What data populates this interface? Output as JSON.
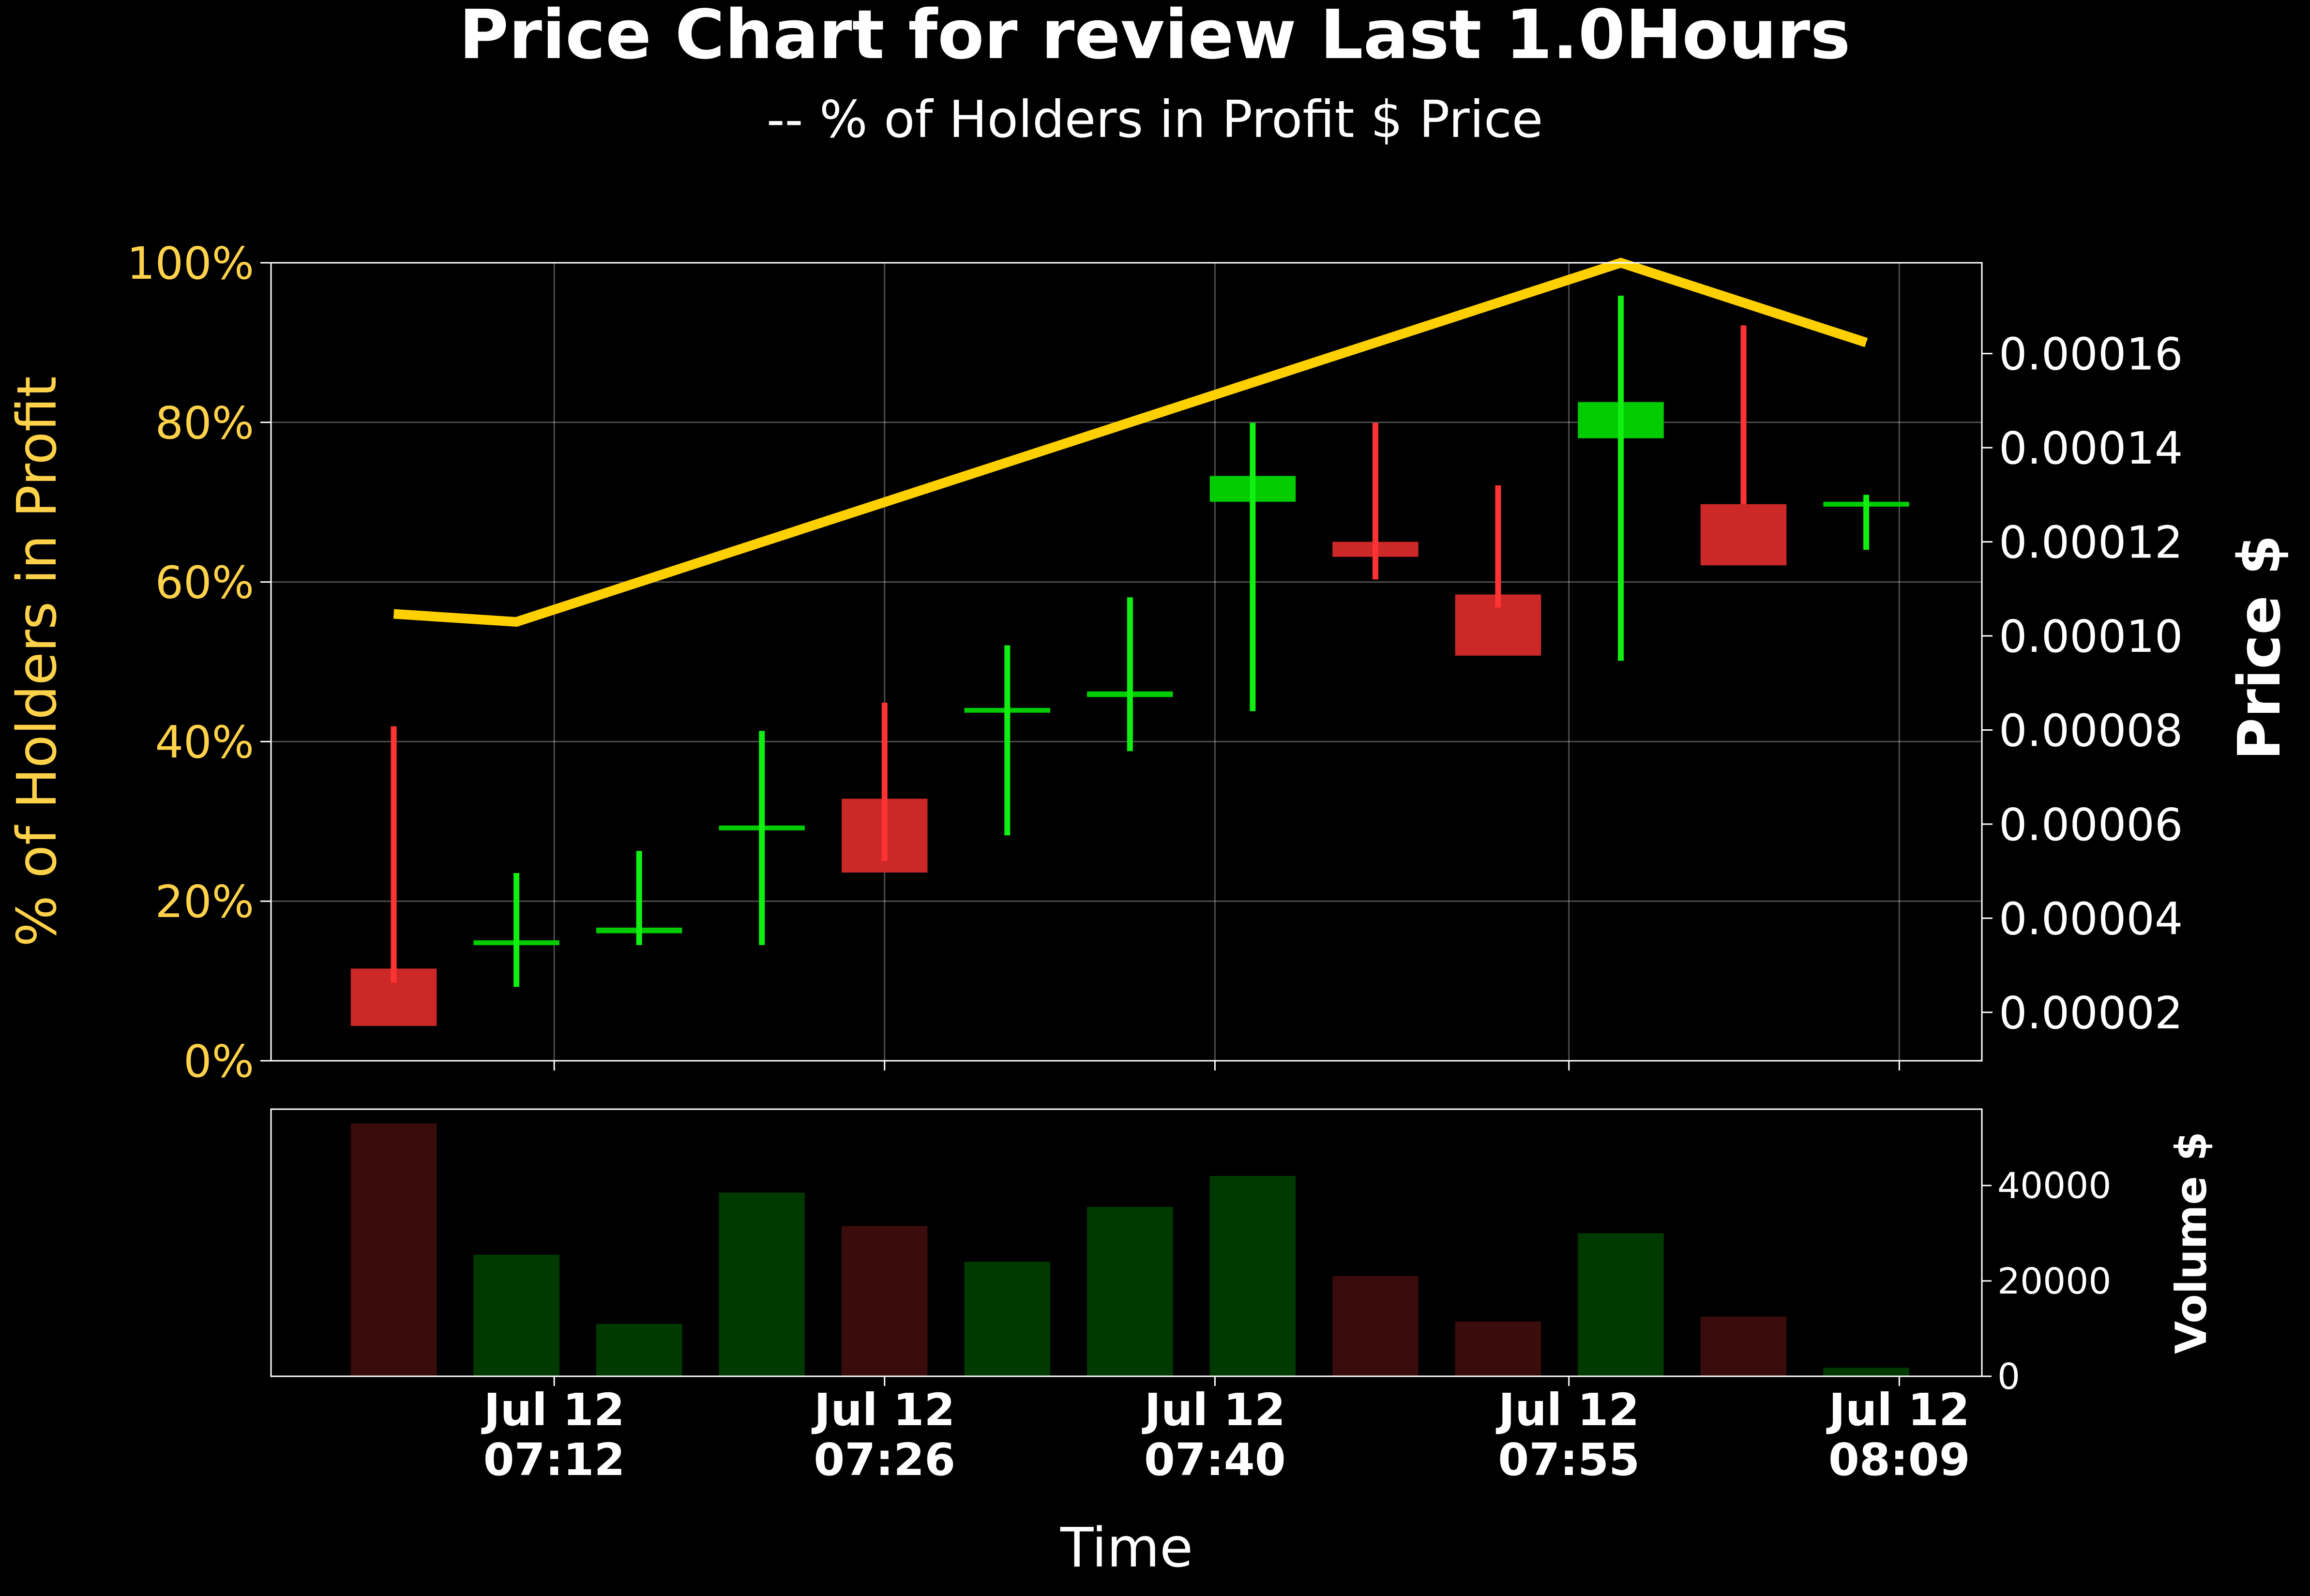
{
  "chart_data": {
    "type": "candlestick",
    "title": "Price Chart for review Last 1.0Hours",
    "subtitle": "-- % of Holders in Profit $ Price",
    "xlabel": "Time",
    "ylabel_left": "% of Holders in Profit",
    "ylabel_right": "Price $",
    "volume_label": "Volume $",
    "grid": true,
    "colors": {
      "background": "#000000",
      "up": "#00cc00",
      "up_wick": "#11ee11",
      "down": "#cc2828",
      "down_wick": "#ff3333",
      "volume_up": "#003a00",
      "volume_down": "#3a0c0c",
      "profit_line": "#ffd000",
      "left_axis_text": "#ffd24a",
      "text": "#ffffff"
    },
    "x_ticks": [
      {
        "label_line1": "Jul 12",
        "label_line2": "07:12",
        "minute": 12
      },
      {
        "label_line1": "Jul 12",
        "label_line2": "07:26",
        "minute": 26
      },
      {
        "label_line1": "Jul 12",
        "label_line2": "07:40",
        "minute": 40
      },
      {
        "label_line1": "Jul 12",
        "label_line2": "07:55",
        "minute": 55
      },
      {
        "label_line1": "Jul 12",
        "label_line2": "08:09",
        "minute": 69
      }
    ],
    "xlim_minutes": [
      0,
      72.5
    ],
    "left_axis": {
      "ylim": [
        0,
        100
      ],
      "ticks": [
        "0%",
        "20%",
        "40%",
        "60%",
        "80%",
        "100%"
      ]
    },
    "right_axis": {
      "ylim": [
        9.7e-06,
        0.0001793
      ],
      "ticks": [
        "0.00002",
        "0.00004",
        "0.00006",
        "0.00008",
        "0.00010",
        "0.00012",
        "0.00014",
        "0.00016"
      ]
    },
    "volume_axis": {
      "ylim": [
        0,
        56000
      ],
      "ticks": [
        "0",
        "20000",
        "40000"
      ]
    },
    "candles": [
      {
        "minute": 5.2,
        "open": 2.93e-05,
        "close": 1.71e-05,
        "high": 8.08e-05,
        "low": 2.63e-05,
        "volume": 53000
      },
      {
        "minute": 10.4,
        "open": 3.47e-05,
        "close": 3.53e-05,
        "high": 4.96e-05,
        "low": 2.54e-05,
        "volume": 25500
      },
      {
        "minute": 15.6,
        "open": 3.68e-05,
        "close": 3.8e-05,
        "high": 5.43e-05,
        "low": 3.43e-05,
        "volume": 11000
      },
      {
        "minute": 20.8,
        "open": 5.93e-05,
        "close": 5.97e-05,
        "high": 7.98e-05,
        "low": 3.43e-05,
        "volume": 38500
      },
      {
        "minute": 26.0,
        "open": 6.54e-05,
        "close": 4.97e-05,
        "high": 8.58e-05,
        "low": 5.22e-05,
        "volume": 31500
      },
      {
        "minute": 31.2,
        "open": 8.43e-05,
        "close": 8.47e-05,
        "high": 9.8e-05,
        "low": 5.76e-05,
        "volume": 24000
      },
      {
        "minute": 36.4,
        "open": 8.7e-05,
        "close": 8.82e-05,
        "high": 0.0001082,
        "low": 7.55e-05,
        "volume": 35500
      },
      {
        "minute": 41.6,
        "open": 0.0001285,
        "close": 0.000134,
        "high": 0.0001453,
        "low": 8.4e-05,
        "volume": 42000
      },
      {
        "minute": 46.8,
        "open": 0.00012,
        "close": 0.0001168,
        "high": 0.0001453,
        "low": 0.000112,
        "volume": 21000
      },
      {
        "minute": 52.0,
        "open": 0.0001088,
        "close": 9.58e-05,
        "high": 0.000132,
        "low": 0.000106,
        "volume": 11500
      },
      {
        "minute": 57.2,
        "open": 0.000142,
        "close": 0.0001497,
        "high": 0.0001723,
        "low": 9.47e-05,
        "volume": 30000
      },
      {
        "minute": 62.4,
        "open": 0.000128,
        "close": 0.000115,
        "high": 0.000166,
        "low": 0.000128,
        "volume": 12500
      },
      {
        "minute": 67.6,
        "open": 0.0001282,
        "close": 0.0001285,
        "high": 0.00013,
        "low": 0.0001183,
        "volume": 1800
      }
    ],
    "profit_line": [
      {
        "minute": 5.2,
        "pct": 56
      },
      {
        "minute": 10.4,
        "pct": 55
      },
      {
        "minute": 57.2,
        "pct": 100
      },
      {
        "minute": 67.6,
        "pct": 90
      }
    ]
  }
}
